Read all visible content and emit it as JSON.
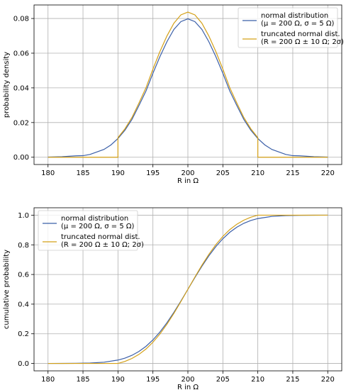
{
  "chart_data": [
    {
      "type": "line",
      "title": "",
      "xlabel": "R in Ω",
      "ylabel": "probability density",
      "xlim": [
        178,
        222
      ],
      "ylim": [
        -0.0042,
        0.0878
      ],
      "xticks": [
        180,
        185,
        190,
        195,
        200,
        205,
        210,
        215,
        220
      ],
      "xtick_labels": [
        "180",
        "185",
        "190",
        "195",
        "200",
        "205",
        "210",
        "215",
        "220"
      ],
      "yticks": [
        0.0,
        0.02,
        0.04,
        0.06,
        0.08
      ],
      "ytick_labels": [
        "0.00",
        "0.02",
        "0.04",
        "0.06",
        "0.08"
      ],
      "grid": true,
      "legend_position": "top-right",
      "series": [
        {
          "name": "normal distribution",
          "name_line2": "(μ = 200 Ω, σ = 5 Ω)",
          "color": "#3b5fa8",
          "x": [
            180,
            182,
            184,
            185,
            186,
            188,
            189,
            190,
            191,
            192,
            193,
            194,
            195,
            196,
            197,
            198,
            199,
            200,
            201,
            202,
            203,
            204,
            205,
            206,
            207,
            208,
            209,
            210,
            211,
            212,
            214,
            215,
            216,
            218,
            220
          ],
          "y": [
            0.0001,
            0.0003,
            0.0008,
            0.0009,
            0.0016,
            0.0045,
            0.0071,
            0.0108,
            0.0156,
            0.0218,
            0.0298,
            0.0381,
            0.0484,
            0.058,
            0.0666,
            0.0737,
            0.0782,
            0.0798,
            0.0782,
            0.0737,
            0.0666,
            0.058,
            0.0484,
            0.0381,
            0.0298,
            0.0218,
            0.0156,
            0.0108,
            0.0071,
            0.0045,
            0.0016,
            0.0009,
            0.0008,
            0.0003,
            0.0001
          ]
        },
        {
          "name": "truncated normal dist.",
          "name_line2": "(R = 200 Ω ± 10 Ω; 2σ)",
          "color": "#d4a017",
          "x": [
            180,
            190,
            190,
            191,
            192,
            193,
            194,
            195,
            196,
            197,
            198,
            199,
            200,
            201,
            202,
            203,
            204,
            205,
            206,
            207,
            208,
            209,
            210,
            210,
            220
          ],
          "y": [
            0.0,
            0.0,
            0.0113,
            0.0164,
            0.0229,
            0.0312,
            0.04,
            0.0508,
            0.0609,
            0.0699,
            0.0773,
            0.0821,
            0.0837,
            0.0821,
            0.0773,
            0.0699,
            0.0609,
            0.0508,
            0.04,
            0.0312,
            0.0229,
            0.0164,
            0.0113,
            0.0,
            0.0
          ]
        }
      ]
    },
    {
      "type": "line",
      "title": "",
      "xlabel": "R in Ω",
      "ylabel": "cumulative probability",
      "xlim": [
        178,
        222
      ],
      "ylim": [
        -0.05,
        1.05
      ],
      "xticks": [
        180,
        185,
        190,
        195,
        200,
        205,
        210,
        215,
        220
      ],
      "xtick_labels": [
        "180",
        "185",
        "190",
        "195",
        "200",
        "205",
        "210",
        "215",
        "220"
      ],
      "yticks": [
        0.0,
        0.2,
        0.4,
        0.6,
        0.8,
        1.0
      ],
      "ytick_labels": [
        "0.0",
        "0.2",
        "0.4",
        "0.6",
        "0.8",
        "1.0"
      ],
      "grid": true,
      "legend_position": "top-left",
      "series": [
        {
          "name": "normal distribution",
          "name_line2": "(μ = 200 Ω, σ = 5 Ω)",
          "color": "#3b5fa8",
          "x": [
            180,
            182,
            184,
            186,
            188,
            190,
            191,
            192,
            193,
            194,
            195,
            196,
            197,
            198,
            199,
            200,
            201,
            202,
            203,
            204,
            205,
            206,
            207,
            208,
            209,
            210,
            212,
            214,
            216,
            218,
            220
          ],
          "y": [
            0.0,
            0.0002,
            0.0007,
            0.0026,
            0.0082,
            0.0228,
            0.0359,
            0.0548,
            0.0808,
            0.1151,
            0.1587,
            0.2119,
            0.2743,
            0.3446,
            0.4207,
            0.5,
            0.5793,
            0.6554,
            0.7257,
            0.7881,
            0.8413,
            0.8849,
            0.9192,
            0.9452,
            0.9641,
            0.9772,
            0.9918,
            0.9974,
            0.9993,
            0.9998,
            1.0
          ]
        },
        {
          "name": "truncated normal dist.",
          "name_line2": "(R = 200 Ω ± 10 Ω; 2σ)",
          "color": "#d4a017",
          "x": [
            180,
            190,
            191,
            192,
            193,
            194,
            195,
            196,
            197,
            198,
            199,
            200,
            201,
            202,
            203,
            204,
            205,
            206,
            207,
            208,
            209,
            210,
            220
          ],
          "y": [
            0.0,
            0.0,
            0.0137,
            0.0336,
            0.0609,
            0.0969,
            0.143,
            0.1988,
            0.2642,
            0.3378,
            0.4175,
            0.5,
            0.5825,
            0.6622,
            0.7358,
            0.8012,
            0.857,
            0.9031,
            0.9391,
            0.9664,
            0.9863,
            1.0,
            1.0
          ]
        }
      ]
    }
  ]
}
